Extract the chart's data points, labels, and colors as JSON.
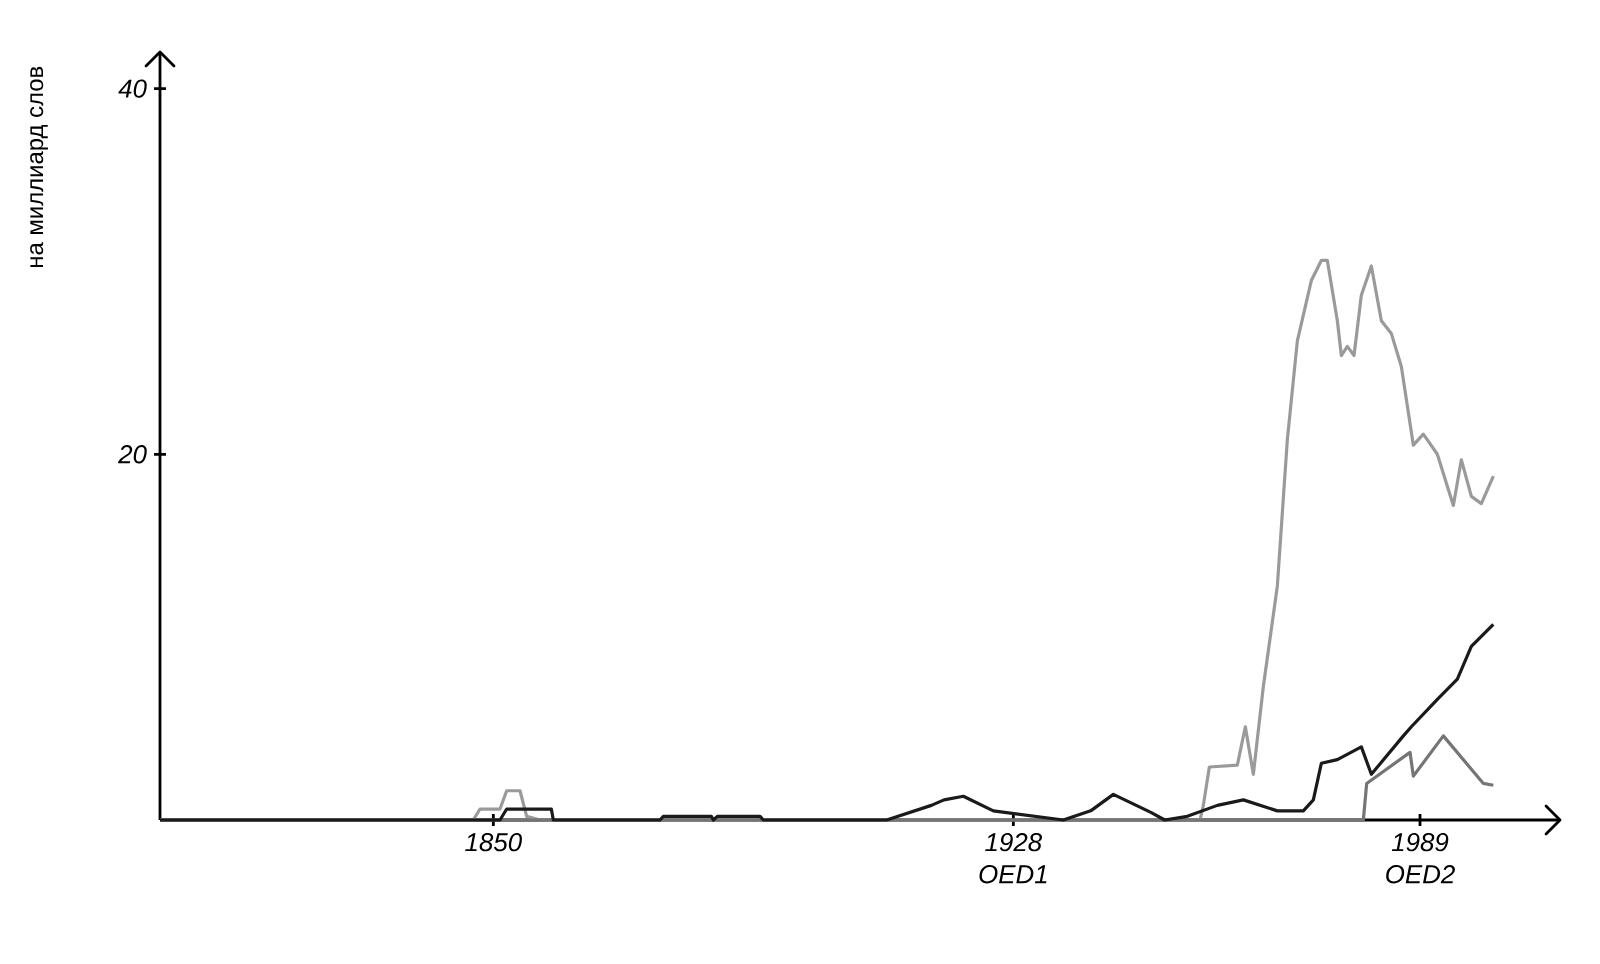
{
  "chart_data": {
    "type": "line",
    "ylabel": "на миллиард слов",
    "xlim": [
      1800,
      2010
    ],
    "ylim": [
      0,
      42
    ],
    "xticks": [
      1850,
      1928,
      1989
    ],
    "annotations": [
      "OED1",
      "OED2"
    ],
    "yticks": [
      20,
      40
    ],
    "series": [
      {
        "color": "#9a9a9a",
        "x": [
          1800,
          1847,
          1848,
          1851,
          1852,
          1854,
          1855,
          1857,
          1956,
          1956.5,
          1957.4,
          1961.6,
          1962.8,
          1964,
          1965.5,
          1967.6,
          1969.1,
          1970.6,
          1972.7,
          1974.2,
          1975.1,
          1976.6,
          1977.2,
          1978.1,
          1979.1,
          1980.2,
          1981.7,
          1983.2,
          1984.7,
          1986.2,
          1988,
          1989.5,
          1991.6,
          1994,
          1995.2,
          1996.7,
          1998.2,
          2000
        ],
        "values": [
          0,
          0,
          0.6,
          0.6,
          1.6,
          1.6,
          0.2,
          0,
          0,
          0.8,
          2.9,
          3.0,
          5.1,
          2.5,
          7.3,
          12.8,
          20.8,
          26.2,
          29.5,
          30.6,
          30.6,
          27.3,
          25.4,
          25.9,
          25.4,
          28.7,
          30.3,
          27.3,
          26.6,
          24.8,
          20.5,
          21.1,
          20.0,
          17.2,
          19.7,
          17.7,
          17.3,
          18.8
        ]
      },
      {
        "color": "#757575",
        "x": [
          1800,
          1980.5,
          1981,
          1987.5,
          1988,
          1992.5,
          1995.5,
          1998.5,
          2000
        ],
        "values": [
          0,
          0,
          2.0,
          3.7,
          2.4,
          4.6,
          3.3,
          2.0,
          1.9
        ]
      },
      {
        "color": "#1a1a1a",
        "x": [
          1800,
          1851,
          1852,
          1858.7,
          1859,
          1875,
          1875.5,
          1882.7,
          1883,
          1883.6,
          1890,
          1890.5,
          1909,
          1915.7,
          1917.6,
          1920.5,
          1925,
          1935.5,
          1939.6,
          1943,
          1948.7,
          1950.7,
          1954.1,
          1958.6,
          1962.5,
          1967.6,
          1971.5,
          1973,
          1974.2,
          1976.6,
          1980.2,
          1981.7,
          1986.5,
          1987.7,
          1991.6,
          1994.6,
          1996.7,
          2000
        ],
        "values": [
          0,
          0,
          0.6,
          0.6,
          0,
          0,
          0.2,
          0.2,
          0,
          0.2,
          0.2,
          0,
          0,
          0.8,
          1.1,
          1.3,
          0.5,
          0,
          0.5,
          1.4,
          0.4,
          0,
          0.2,
          0.8,
          1.1,
          0.5,
          0.5,
          1.1,
          3.1,
          3.3,
          4.0,
          2.5,
          4.6,
          5.1,
          6.6,
          7.7,
          9.5,
          10.7
        ]
      }
    ]
  }
}
